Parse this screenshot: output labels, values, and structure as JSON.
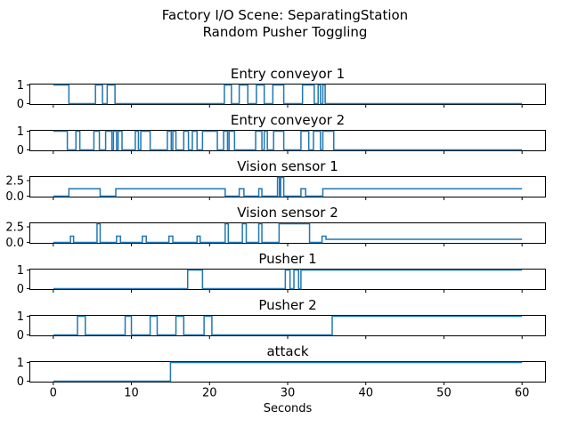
{
  "suptitle": {
    "line1": "Factory I/O Scene: SeparatingStation",
    "line2": "Random Pusher Toggling"
  },
  "xlabel": "Seconds",
  "colors": {
    "line": "#1f77b4",
    "spine": "#000000",
    "text": "#000000",
    "background": "#ffffff"
  },
  "chart_data": {
    "type": "line",
    "style": "digital step signals, 7 stacked subplots sharing x axis",
    "x_range": [
      0,
      60
    ],
    "x_ticks": [
      0,
      10,
      20,
      30,
      40,
      50,
      60
    ],
    "x_tick_labels": [
      "0",
      "10",
      "20",
      "30",
      "40",
      "50",
      "60"
    ],
    "grid": false,
    "legend": null,
    "subplots": [
      {
        "title": "Entry conveyor 1",
        "ylim": [
          -0.05,
          1.05
        ],
        "yticks": [
          {
            "v": 1,
            "label": "1"
          },
          {
            "v": 0,
            "label": "0"
          }
        ],
        "steps": [
          [
            0,
            1
          ],
          [
            2,
            0
          ],
          [
            5.4,
            1
          ],
          [
            6.3,
            0
          ],
          [
            6.9,
            1
          ],
          [
            7.9,
            0
          ],
          [
            21.9,
            1
          ],
          [
            22.8,
            0
          ],
          [
            23.8,
            1
          ],
          [
            24.9,
            0
          ],
          [
            26,
            1
          ],
          [
            27,
            0
          ],
          [
            28.1,
            1
          ],
          [
            29.5,
            0
          ],
          [
            31.9,
            1
          ],
          [
            33.4,
            0
          ],
          [
            33.9,
            1
          ],
          [
            34.2,
            0
          ],
          [
            34.5,
            1
          ],
          [
            34.8,
            0
          ],
          [
            60,
            0
          ]
        ]
      },
      {
        "title": "Entry conveyor 2",
        "ylim": [
          -0.05,
          1.05
        ],
        "yticks": [
          {
            "v": 1,
            "label": "1"
          },
          {
            "v": 0,
            "label": "0"
          }
        ],
        "steps": [
          [
            0,
            1
          ],
          [
            1.8,
            0
          ],
          [
            2.9,
            1
          ],
          [
            3.4,
            0
          ],
          [
            5.2,
            1
          ],
          [
            5.9,
            0
          ],
          [
            6.7,
            1
          ],
          [
            7.5,
            0
          ],
          [
            7.7,
            1
          ],
          [
            8.1,
            0
          ],
          [
            8.3,
            1
          ],
          [
            8.8,
            0
          ],
          [
            10.5,
            1
          ],
          [
            10.9,
            0
          ],
          [
            11.2,
            1
          ],
          [
            12.4,
            0
          ],
          [
            14.6,
            1
          ],
          [
            15.1,
            0
          ],
          [
            15.3,
            1
          ],
          [
            15.7,
            0
          ],
          [
            16.7,
            1
          ],
          [
            17.3,
            0
          ],
          [
            17.8,
            1
          ],
          [
            18.4,
            0
          ],
          [
            19.1,
            1
          ],
          [
            21,
            0
          ],
          [
            21.8,
            1
          ],
          [
            22.3,
            0
          ],
          [
            22.5,
            1
          ],
          [
            23.2,
            0
          ],
          [
            25.9,
            1
          ],
          [
            26.7,
            0
          ],
          [
            27,
            1
          ],
          [
            27.4,
            0
          ],
          [
            28.2,
            1
          ],
          [
            29.5,
            0
          ],
          [
            31.7,
            1
          ],
          [
            32.7,
            0
          ],
          [
            33.3,
            1
          ],
          [
            34.2,
            0
          ],
          [
            34.5,
            1
          ],
          [
            35.9,
            0
          ],
          [
            60,
            0
          ]
        ]
      },
      {
        "title": "Vision sensor 1",
        "ylim": [
          -0.15,
          3.15
        ],
        "yticks": [
          {
            "v": 2.5,
            "label": "2.5"
          },
          {
            "v": 0,
            "label": "0.0"
          }
        ],
        "steps": [
          [
            0,
            0
          ],
          [
            2,
            1.2
          ],
          [
            6,
            0
          ],
          [
            8,
            1.2
          ],
          [
            22,
            0
          ],
          [
            23.8,
            1.2
          ],
          [
            24.4,
            0
          ],
          [
            26.3,
            1.2
          ],
          [
            26.7,
            0
          ],
          [
            28.7,
            3
          ],
          [
            28.95,
            0
          ],
          [
            29.1,
            3
          ],
          [
            29.5,
            0
          ],
          [
            31.7,
            1.2
          ],
          [
            32.3,
            0
          ],
          [
            34.5,
            1.2
          ],
          [
            60,
            1.2
          ]
        ]
      },
      {
        "title": "Vision sensor 2",
        "ylim": [
          -0.15,
          3.15
        ],
        "yticks": [
          {
            "v": 2.5,
            "label": "2.5"
          },
          {
            "v": 0,
            "label": "0.0"
          }
        ],
        "steps": [
          [
            0,
            0
          ],
          [
            2.2,
            1
          ],
          [
            2.6,
            0
          ],
          [
            5.6,
            3
          ],
          [
            6,
            0
          ],
          [
            8.1,
            1
          ],
          [
            8.6,
            0
          ],
          [
            11.4,
            1
          ],
          [
            11.9,
            0
          ],
          [
            14.8,
            1
          ],
          [
            15.3,
            0
          ],
          [
            18.4,
            1
          ],
          [
            18.8,
            0
          ],
          [
            22,
            3
          ],
          [
            22.4,
            0
          ],
          [
            24.2,
            3
          ],
          [
            24.7,
            0
          ],
          [
            26.3,
            3
          ],
          [
            26.7,
            0
          ],
          [
            28.9,
            3
          ],
          [
            32.8,
            0
          ],
          [
            34.4,
            1
          ],
          [
            34.9,
            0.5
          ],
          [
            60,
            0.5
          ]
        ]
      },
      {
        "title": "Pusher 1",
        "ylim": [
          -0.05,
          1.05
        ],
        "yticks": [
          {
            "v": 1,
            "label": "1"
          },
          {
            "v": 0,
            "label": "0"
          }
        ],
        "steps": [
          [
            0,
            0
          ],
          [
            17.2,
            1
          ],
          [
            19.1,
            0
          ],
          [
            29.7,
            1
          ],
          [
            30.3,
            0
          ],
          [
            30.8,
            1
          ],
          [
            31.4,
            0
          ],
          [
            31.7,
            1
          ],
          [
            60,
            1
          ]
        ]
      },
      {
        "title": "Pusher 2",
        "ylim": [
          -0.05,
          1.05
        ],
        "yticks": [
          {
            "v": 1,
            "label": "1"
          },
          {
            "v": 0,
            "label": "0"
          }
        ],
        "steps": [
          [
            0,
            0
          ],
          [
            3.1,
            1
          ],
          [
            4.1,
            0
          ],
          [
            9.2,
            1
          ],
          [
            10,
            0
          ],
          [
            12.4,
            1
          ],
          [
            13.3,
            0
          ],
          [
            15.7,
            1
          ],
          [
            16.7,
            0
          ],
          [
            19.3,
            1
          ],
          [
            20.3,
            0
          ],
          [
            35.7,
            1
          ],
          [
            60,
            1
          ]
        ]
      },
      {
        "title": "attack",
        "ylim": [
          -0.05,
          1.05
        ],
        "yticks": [
          {
            "v": 1,
            "label": "1"
          },
          {
            "v": 0,
            "label": "0"
          }
        ],
        "steps": [
          [
            0,
            0
          ],
          [
            15,
            1
          ],
          [
            60,
            1
          ]
        ],
        "show_x_tick_labels": true
      }
    ]
  }
}
